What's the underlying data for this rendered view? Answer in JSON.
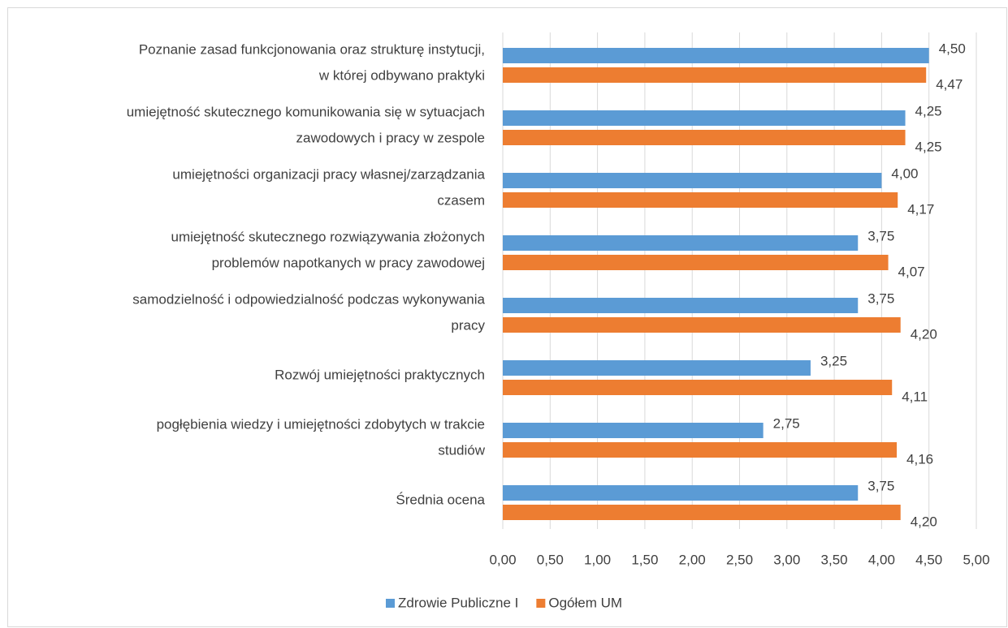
{
  "chart_data": {
    "type": "bar",
    "orientation": "horizontal",
    "categories": [
      [
        "Poznanie  zasad funkcjonowania oraz strukturę instytucji,",
        "w której odbywano praktyki"
      ],
      [
        "umiejętność skutecznego komunikowania się w sytuacjach",
        "zawodowych i pracy w zespole"
      ],
      [
        "umiejętności organizacji pracy własnej/zarządzania",
        "czasem"
      ],
      [
        "umiejętność skutecznego rozwiązywania złożonych",
        "problemów napotkanych w pracy zawodowej"
      ],
      [
        "samodzielność i odpowiedzialność podczas wykonywania",
        "pracy"
      ],
      [
        "Rozwój umiejętności praktycznych"
      ],
      [
        "pogłębienia wiedzy i umiejętności zdobytych w trakcie",
        "studiów"
      ],
      [
        "Średnia ocena"
      ]
    ],
    "series": [
      {
        "name": "Zdrowie Publiczne I",
        "color": "#5b9bd5",
        "values": [
          4.5,
          4.25,
          4.0,
          3.75,
          3.75,
          3.25,
          2.75,
          3.75
        ],
        "value_labels": [
          "4,50",
          "4,25",
          "4,00",
          "3,75",
          "3,75",
          "3,25",
          "2,75",
          "3,75"
        ]
      },
      {
        "name": "Ogółem UM",
        "color": "#ed7d31",
        "values": [
          4.47,
          4.25,
          4.17,
          4.07,
          4.2,
          4.11,
          4.16,
          4.2
        ],
        "value_labels": [
          "4,47",
          "4,25",
          "4,17",
          "4,07",
          "4,20",
          "4,11",
          "4,16",
          "4,20"
        ]
      }
    ],
    "xlim": [
      0,
      5
    ],
    "xticks": [
      {
        "value": 0,
        "label": "0,00"
      },
      {
        "value": 0.5,
        "label": "0,50"
      },
      {
        "value": 1,
        "label": "1,00"
      },
      {
        "value": 1.5,
        "label": "1,50"
      },
      {
        "value": 2,
        "label": "2,00"
      },
      {
        "value": 2.5,
        "label": "2,50"
      },
      {
        "value": 3,
        "label": "3,00"
      },
      {
        "value": 3.5,
        "label": "3,50"
      },
      {
        "value": 4,
        "label": "4,00"
      },
      {
        "value": 4.5,
        "label": "4,50"
      },
      {
        "value": 5,
        "label": "5,00"
      }
    ],
    "grid": true,
    "legend": "bottom"
  }
}
